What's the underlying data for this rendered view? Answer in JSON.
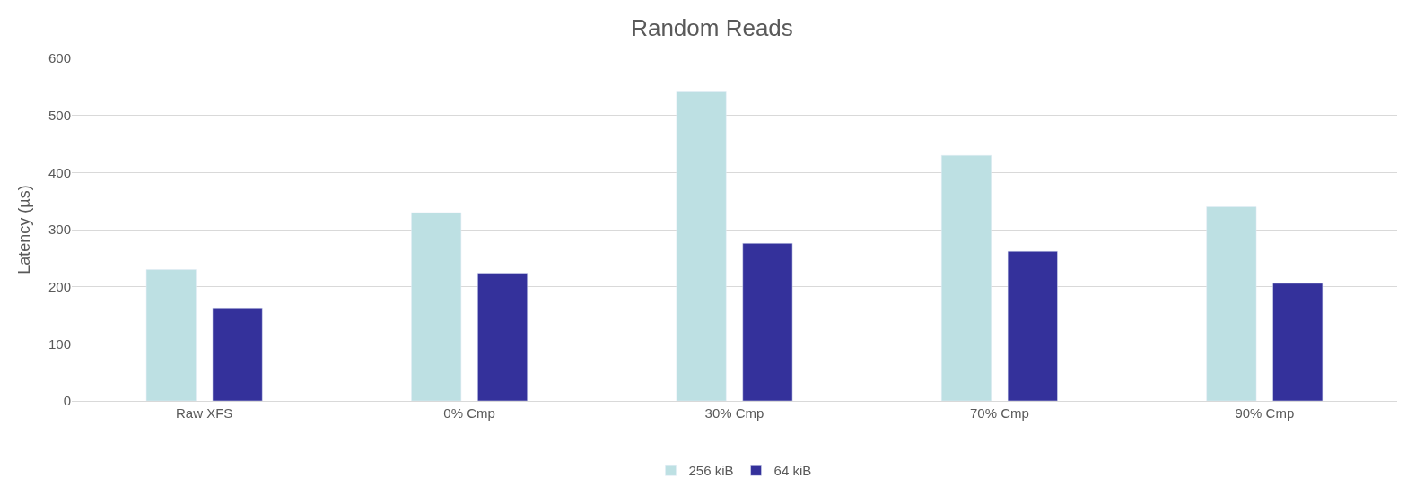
{
  "chart_data": {
    "type": "bar",
    "title": "Random Reads",
    "ylabel": "Latency (µs)",
    "categories": [
      "Raw XFS",
      "0% Cmp",
      "30% Cmp",
      "70% Cmp",
      "90% Cmp"
    ],
    "series": [
      {
        "name": "256 kiB",
        "color": "#bde0e3",
        "values": [
          230,
          330,
          541,
          430,
          340
        ]
      },
      {
        "name": "64 kiB",
        "color": "#34319b",
        "values": [
          163,
          224,
          276,
          262,
          206
        ]
      }
    ],
    "ylim": [
      0,
      600
    ],
    "yticks": [
      0,
      100,
      200,
      300,
      400,
      500,
      600
    ],
    "grid": "y",
    "legend": "bottom"
  }
}
